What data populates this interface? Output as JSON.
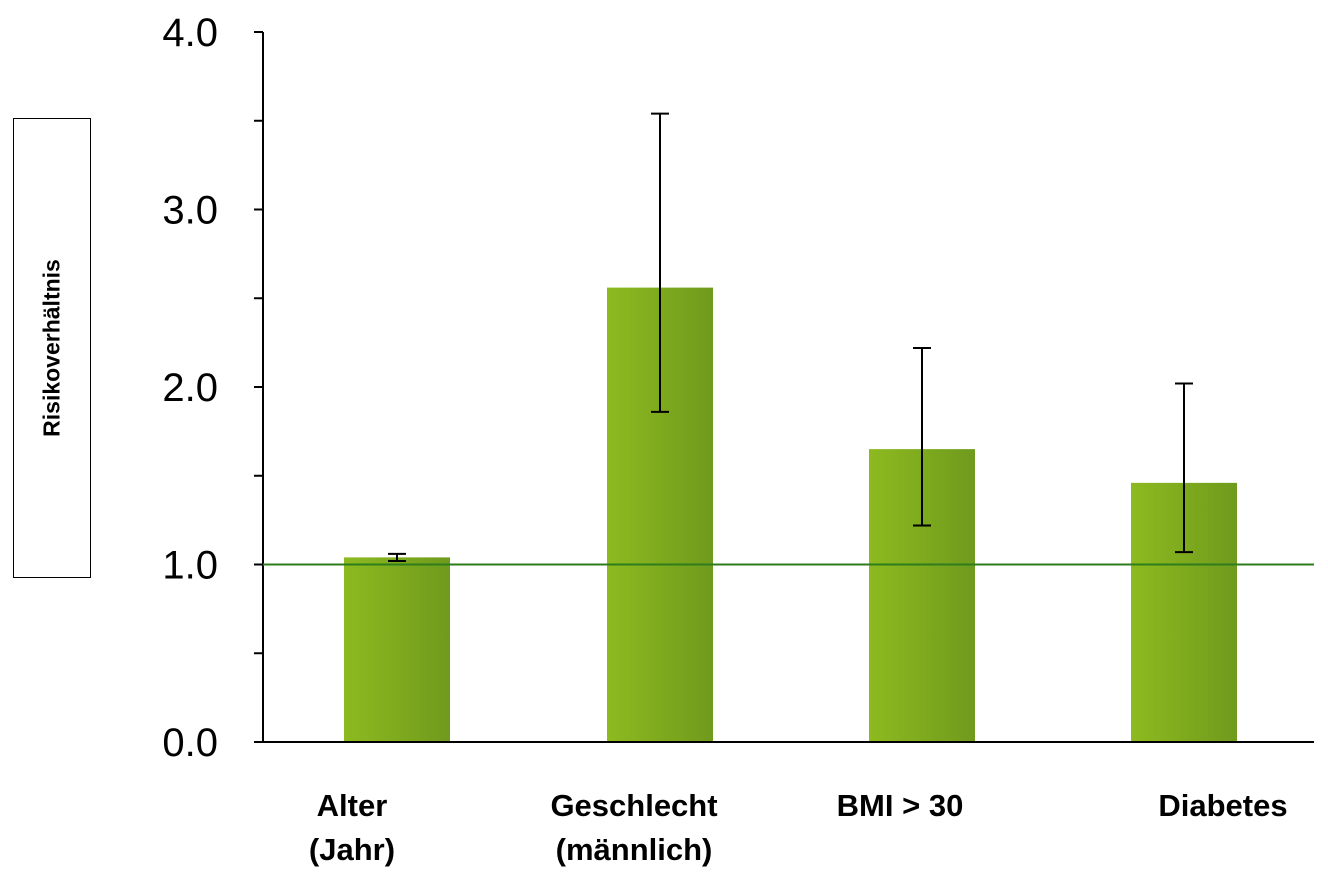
{
  "chart_data": {
    "type": "bar",
    "title": "",
    "xlabel": "",
    "ylabel": "Risikoverhältnis",
    "ylim": [
      0,
      4
    ],
    "ytick_labels": [
      "0.0",
      "1.0",
      "2.0",
      "3.0",
      "4.0"
    ],
    "ytick_values": [
      0,
      1,
      2,
      3,
      4
    ],
    "minor_ticks": [
      0.5,
      1.5,
      2.5,
      3.5
    ],
    "categories": [
      [
        "Alter",
        "(Jahr)"
      ],
      [
        "Geschlecht",
        "(männlich)"
      ],
      [
        "BMI > 30"
      ],
      [
        "Diabetes"
      ]
    ],
    "values": [
      1.04,
      2.56,
      1.65,
      1.46
    ],
    "error_low": [
      1.02,
      1.86,
      1.22,
      1.07
    ],
    "error_high": [
      1.06,
      3.54,
      2.22,
      2.02
    ],
    "reference_line": 1.0,
    "grid": false,
    "colors": {
      "bar_light": "#8dba1f",
      "bar_dark": "#6f9a1e",
      "reference_line": "#2e7d1a",
      "axis": "#000000"
    }
  }
}
